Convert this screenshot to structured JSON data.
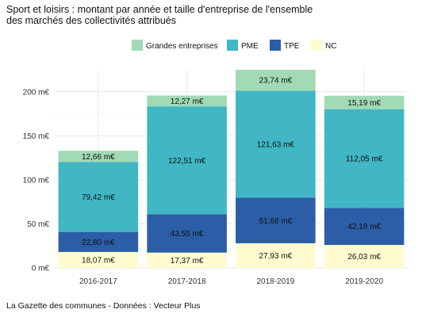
{
  "title_line1": "Sport et loisirs : montant par année et taille d'entreprise de l'ensemble",
  "title_line2": "des marchés des collectivités attribués",
  "caption": "La Gazette des communes - Données : Vecteur Plus",
  "chart_data": {
    "type": "bar",
    "stacked": true,
    "categories": [
      "2016-2017",
      "2017-2018",
      "2018-2019",
      "2019-2020"
    ],
    "series": [
      {
        "name": "NC",
        "color": "#fffdd0",
        "values": [
          18.07,
          17.37,
          27.93,
          26.03
        ],
        "labels": [
          "18,07 m€",
          "17,37 m€",
          "27,93 m€",
          "26,03 m€"
        ]
      },
      {
        "name": "TPE",
        "color": "#2b5ea7",
        "values": [
          22.8,
          43.55,
          51.68,
          42.18
        ],
        "labels": [
          "22,80 m€",
          "43,55 m€",
          "51,68 m€",
          "42,18 m€"
        ]
      },
      {
        "name": "PME",
        "color": "#41b6c4",
        "values": [
          79.42,
          122.51,
          121.63,
          112.05
        ],
        "labels": [
          "79,42 m€",
          "122,51 m€",
          "121,63 m€",
          "112,05 m€"
        ]
      },
      {
        "name": "Grandes entreprises",
        "color": "#a1dab4",
        "values": [
          12.66,
          12.27,
          23.74,
          15.19
        ],
        "labels": [
          "12,66 m€",
          "12,27 m€",
          "23,74 m€",
          "15,19 m€"
        ]
      }
    ],
    "legend_order": [
      "Grandes entreprises",
      "PME",
      "TPE",
      "NC"
    ],
    "legend_position": "top",
    "y_ticks": [
      0,
      50,
      100,
      150,
      200
    ],
    "y_tick_labels": [
      "0 m€",
      "50 m€",
      "100 m€",
      "150 m€",
      "200 m€"
    ],
    "ylim": [
      0,
      225
    ],
    "grid": true,
    "xlabel": "",
    "ylabel": ""
  }
}
